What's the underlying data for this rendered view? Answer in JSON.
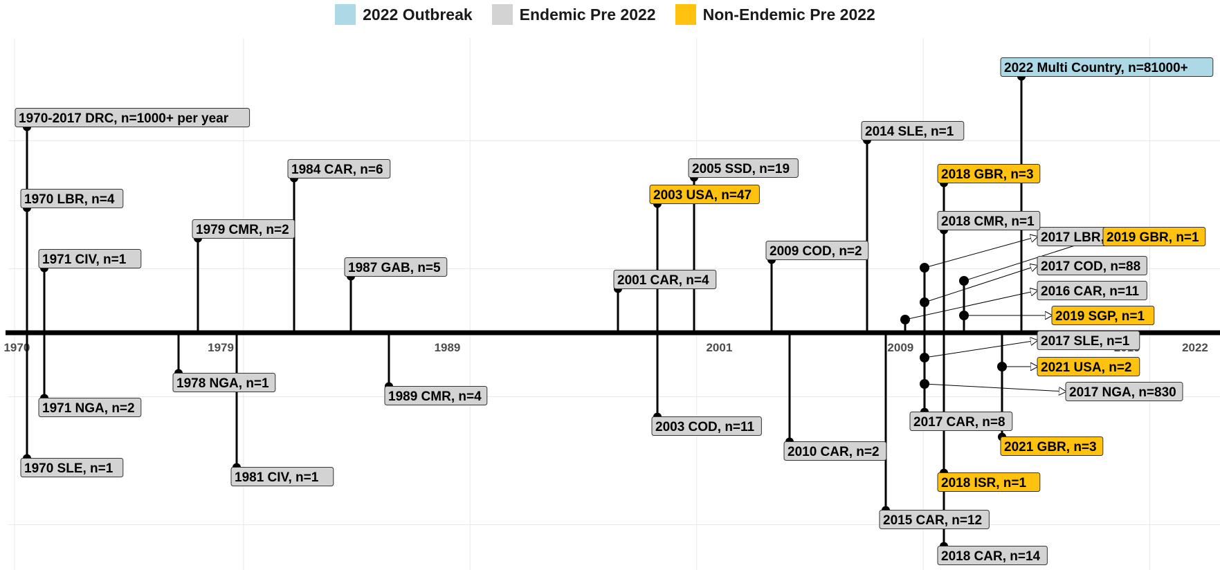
{
  "colors": {
    "outbreak_2022": "#add8e6",
    "endemic": "#d3d3d3",
    "non_endemic": "#ffc20e",
    "text": "#000000",
    "grid": "#e8e8e8",
    "tick_text": "#4d4d4d"
  },
  "legend": [
    {
      "label": "2022 Outbreak",
      "color_key": "outbreak_2022"
    },
    {
      "label": "Endemic Pre 2022",
      "color_key": "endemic"
    },
    {
      "label": "Non-Endemic Pre 2022",
      "color_key": "non_endemic"
    }
  ],
  "chart_data": {
    "type": "timeline",
    "axis_ticks": [
      1970,
      1979,
      1989,
      2001,
      2009,
      2019,
      2022
    ],
    "x_range": [
      1969.5,
      2023.1
    ],
    "y_range": [
      -1.0,
      1.0
    ],
    "events": [
      {
        "label": "1970-2017 DRC, n=1000+ per year",
        "year": 1970,
        "height": 0.78,
        "group": "endemic"
      },
      {
        "label": "1970 LBR, n=4",
        "year": 1970,
        "height": 0.47,
        "group": "endemic"
      },
      {
        "label": "1970 SLE, n=1",
        "year": 1970,
        "height": -0.5,
        "group": "endemic"
      },
      {
        "label": "1971 CIV, n=1",
        "year": 1970.9,
        "height": 0.25,
        "group": "endemic"
      },
      {
        "label": "1971 NGA, n=2",
        "year": 1970.9,
        "height": -0.26,
        "group": "endemic"
      },
      {
        "label": "1978 NGA, n=1",
        "year": 1978.8,
        "height": -0.15,
        "group": "endemic"
      },
      {
        "label": "1979 CMR, n=2",
        "year": 1978.9,
        "height": 0.36,
        "group": "endemic"
      },
      {
        "label": "1981 CIV, n=1",
        "year": 1980.9,
        "height": -0.53,
        "group": "endemic"
      },
      {
        "label": "1984 CAR, n=6",
        "year": 1983.9,
        "height": 0.59,
        "group": "endemic"
      },
      {
        "label": "1987 GAB, n=5",
        "year": 1986.9,
        "height": 0.21,
        "group": "endemic"
      },
      {
        "label": "1989 CMR, n=4",
        "year": 1988.8,
        "height": -0.21,
        "group": "endemic"
      },
      {
        "label": "2001 CAR, n=4",
        "year": 2001,
        "height": 0.16,
        "group": "endemic"
      },
      {
        "label": "2003 COD, n=11",
        "year": 2003,
        "height": -0.33,
        "group": "endemic"
      },
      {
        "label": "2003 USA, n=47",
        "year": 2003,
        "height": 0.49,
        "group": "non_endemic"
      },
      {
        "label": "2005 SSD, n=19",
        "year": 2005,
        "height": 0.59,
        "group": "endemic"
      },
      {
        "label": "2009 COD, n=2",
        "year": 2009,
        "height": 0.27,
        "group": "endemic"
      },
      {
        "label": "2010 CAR, n=2",
        "year": 2010,
        "height": -0.43,
        "group": "endemic"
      },
      {
        "label": "2014 SLE, n=1",
        "year": 2014,
        "height": 0.75,
        "group": "endemic"
      },
      {
        "label": "2015 CAR, n=12",
        "year": 2015,
        "height": -0.7,
        "group": "endemic"
      },
      {
        "label": "2016 CAR, n=11",
        "year": 2016,
        "height": 0.05,
        "group": "endemic",
        "arrow": true
      },
      {
        "label": "2017 LBR, n=1",
        "year": 2017,
        "height": 0.25,
        "group": "endemic",
        "arrow": true
      },
      {
        "label": "2017 COD, n=88",
        "year": 2017,
        "height": 0.12,
        "group": "endemic",
        "arrow": true
      },
      {
        "label": "2017 SLE, n=1",
        "year": 2017,
        "height": -0.1,
        "group": "endemic",
        "arrow": true
      },
      {
        "label": "2017 NGA, n=830",
        "year": 2017,
        "height": -0.2,
        "group": "endemic",
        "arrow": true
      },
      {
        "label": "2017 CAR, n=8",
        "year": 2017,
        "height": -0.31,
        "group": "endemic"
      },
      {
        "label": "2018 GBR, n=3",
        "year": 2018,
        "height": 0.59,
        "group": "non_endemic"
      },
      {
        "label": "2018 CMR, n=1",
        "year": 2018,
        "height": 0.39,
        "group": "endemic"
      },
      {
        "label": "2018 ISR, n=1",
        "year": 2018,
        "height": -0.55,
        "group": "non_endemic"
      },
      {
        "label": "2018 CAR, n=14",
        "year": 2018,
        "height": -0.83,
        "group": "endemic"
      },
      {
        "label": "2019 GBR, n=1",
        "year": 2019,
        "height": 0.2,
        "group": "non_endemic",
        "arrow": true
      },
      {
        "label": "2019 SGP, n=1",
        "year": 2019,
        "height": 0.06,
        "group": "non_endemic",
        "arrow": true
      },
      {
        "label": "2021 USA, n=2",
        "year": 2021,
        "height": -0.13,
        "group": "non_endemic",
        "arrow": true
      },
      {
        "label": "2021 GBR, n=3",
        "year": 2021,
        "height": -0.4,
        "group": "non_endemic"
      },
      {
        "label": "2022 Multi Country, n=81000+",
        "year": 2022,
        "height": 1.0,
        "group": "outbreak_2022"
      }
    ]
  }
}
